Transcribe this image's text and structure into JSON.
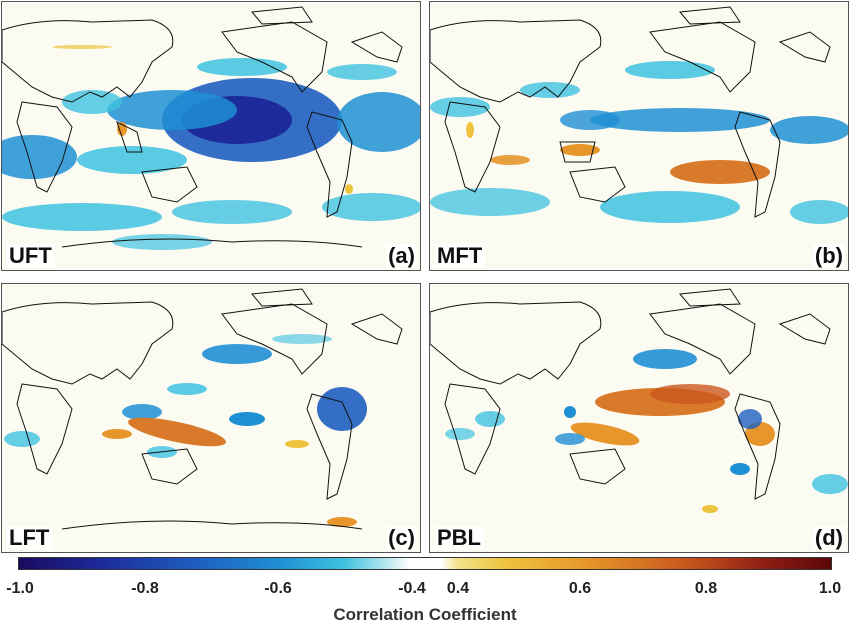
{
  "panels": [
    {
      "id": "a",
      "level": "UFT",
      "letter": "(a)"
    },
    {
      "id": "b",
      "level": "MFT",
      "letter": "(b)"
    },
    {
      "id": "c",
      "level": "LFT",
      "letter": "(c)"
    },
    {
      "id": "d",
      "level": "PBL",
      "letter": "(d)"
    }
  ],
  "colorbar": {
    "title": "Correlation Coefficient",
    "ticks": [
      "-1.0",
      "-0.8",
      "-0.6",
      "-0.4",
      "0.4",
      "0.6",
      "0.8",
      "1.0"
    ],
    "range": [
      -1.0,
      1.0
    ],
    "colors": {
      "min": "#1a0a5e",
      "mid_negative": "#1f8fd4",
      "white": "#ffffff",
      "mid_positive": "#e6962a",
      "max": "#5a0708"
    }
  }
}
